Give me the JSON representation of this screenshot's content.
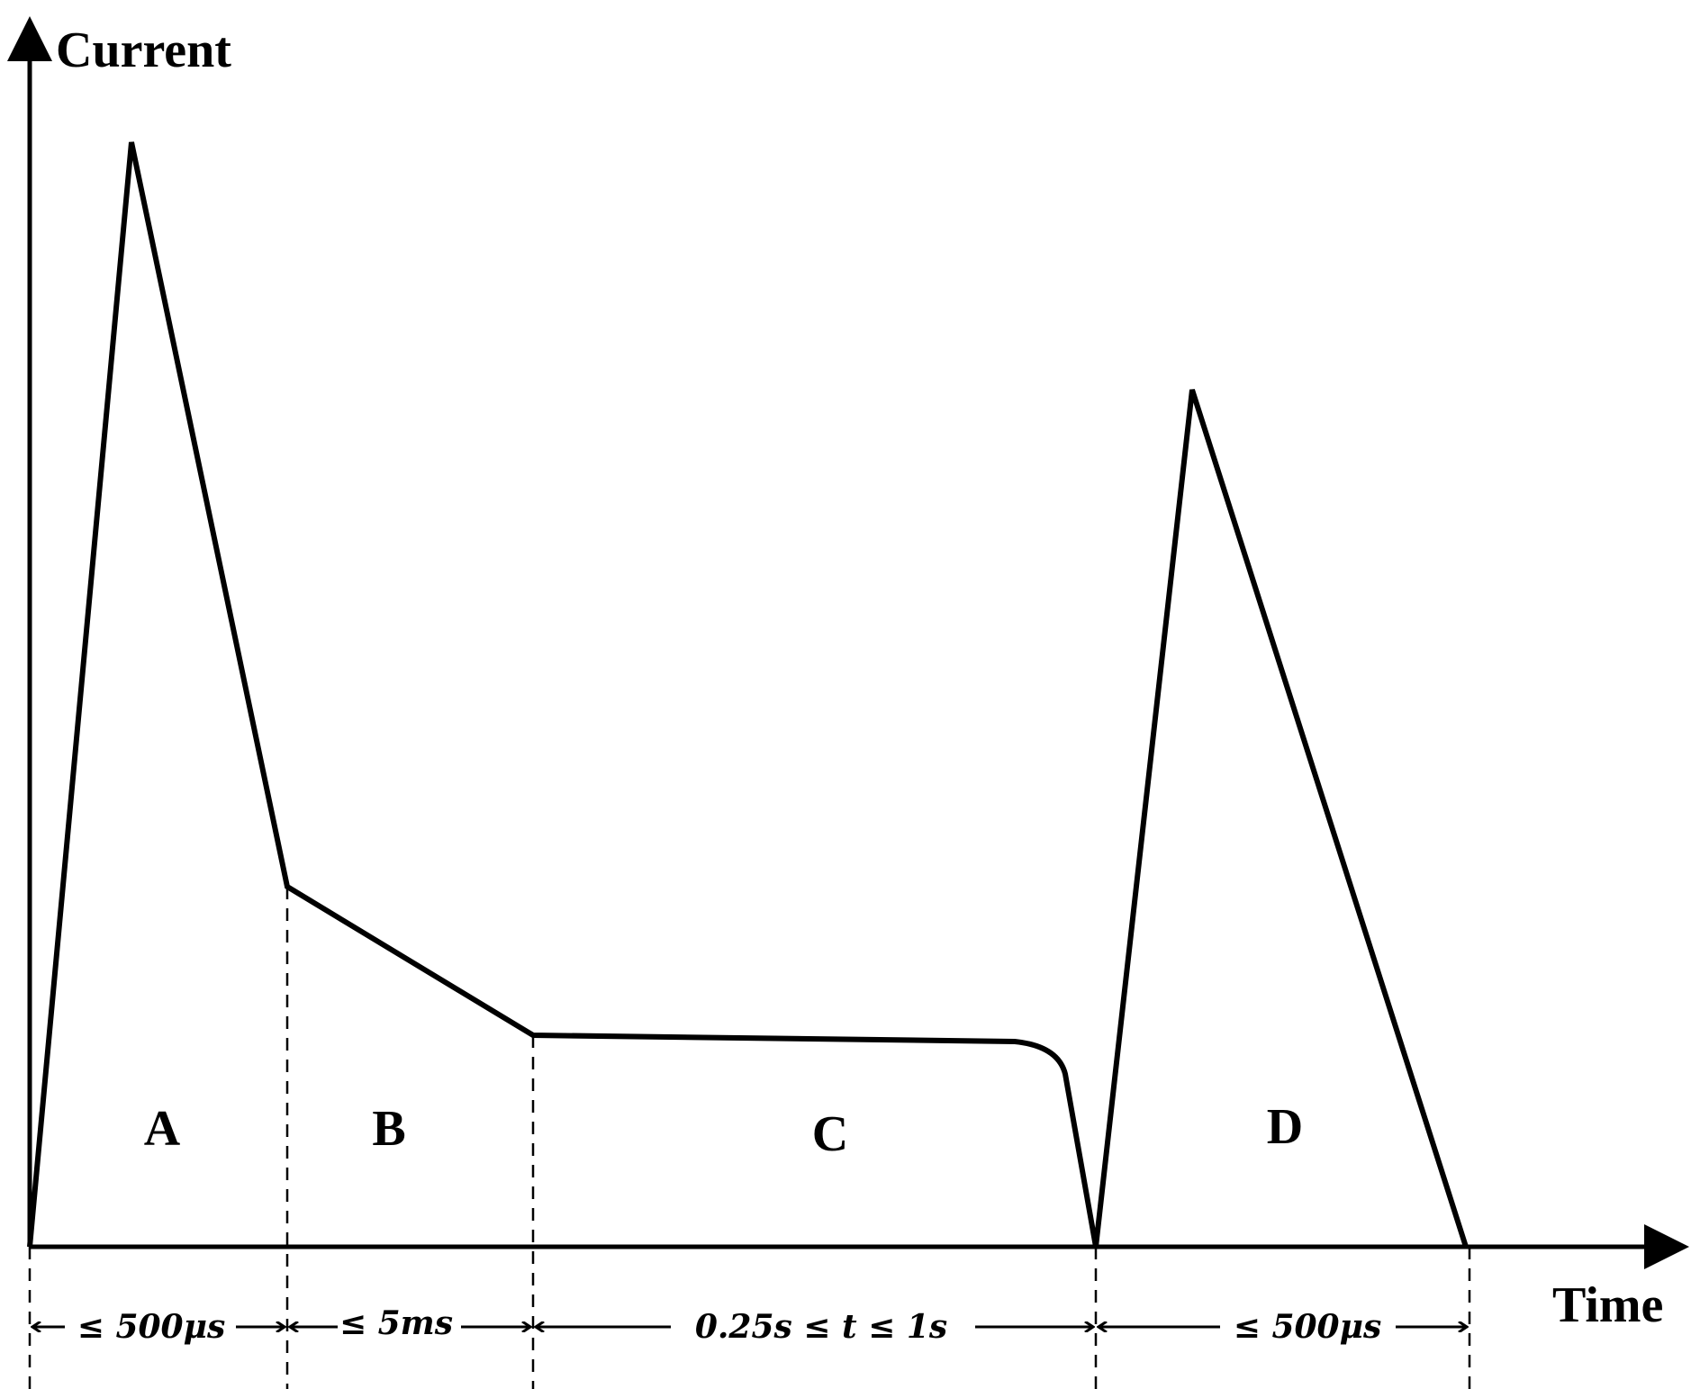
{
  "axes": {
    "y_label": "Current",
    "x_label": "Time"
  },
  "regions": [
    {
      "label": "A"
    },
    {
      "label": "B"
    },
    {
      "label": "C"
    },
    {
      "label": "D"
    }
  ],
  "durations": [
    {
      "label": "≤ 500μs"
    },
    {
      "label": "≤ 5ms"
    },
    {
      "label": "0.25s ≤ t ≤ 1s"
    },
    {
      "label": "≤ 500μs"
    }
  ]
}
